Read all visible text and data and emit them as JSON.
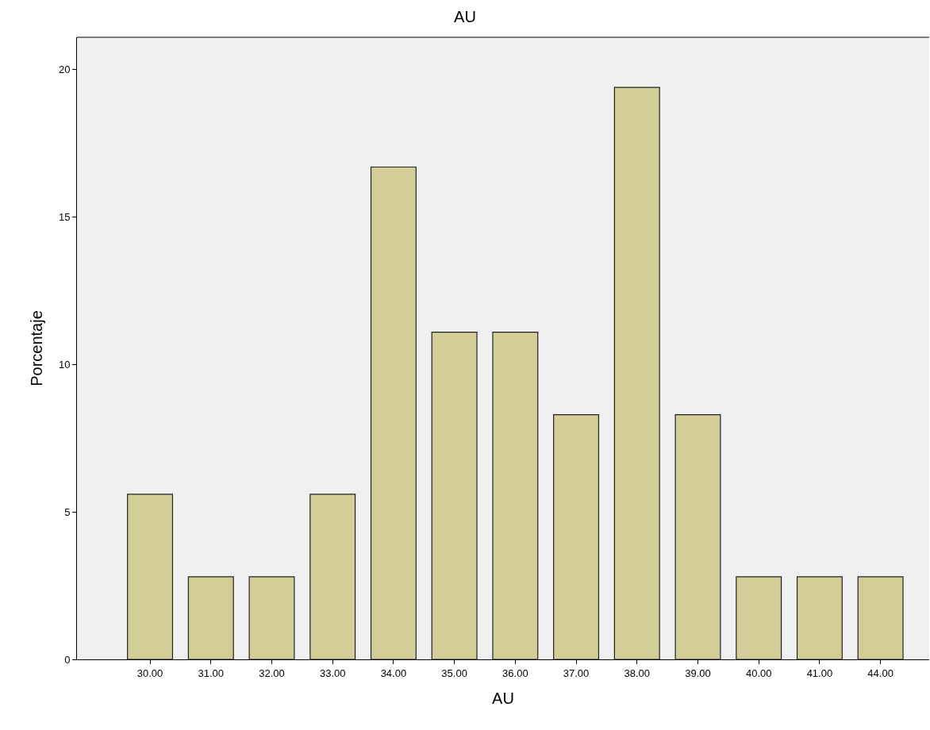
{
  "chart_data": {
    "type": "bar",
    "title": "AU",
    "xlabel": "AU",
    "ylabel": "Porcentaje",
    "categories": [
      "30.00",
      "31.00",
      "32.00",
      "33.00",
      "34.00",
      "35.00",
      "36.00",
      "37.00",
      "38.00",
      "39.00",
      "40.00",
      "41.00",
      "44.00"
    ],
    "values": [
      5.6,
      2.8,
      2.8,
      5.6,
      16.7,
      11.1,
      11.1,
      8.3,
      19.4,
      8.3,
      2.8,
      2.8,
      2.8
    ],
    "color": "#d3ce97",
    "ylim": [
      0,
      21.1
    ],
    "yticks": [
      0,
      5,
      10,
      15,
      20
    ],
    "grid": false,
    "legend": false
  }
}
